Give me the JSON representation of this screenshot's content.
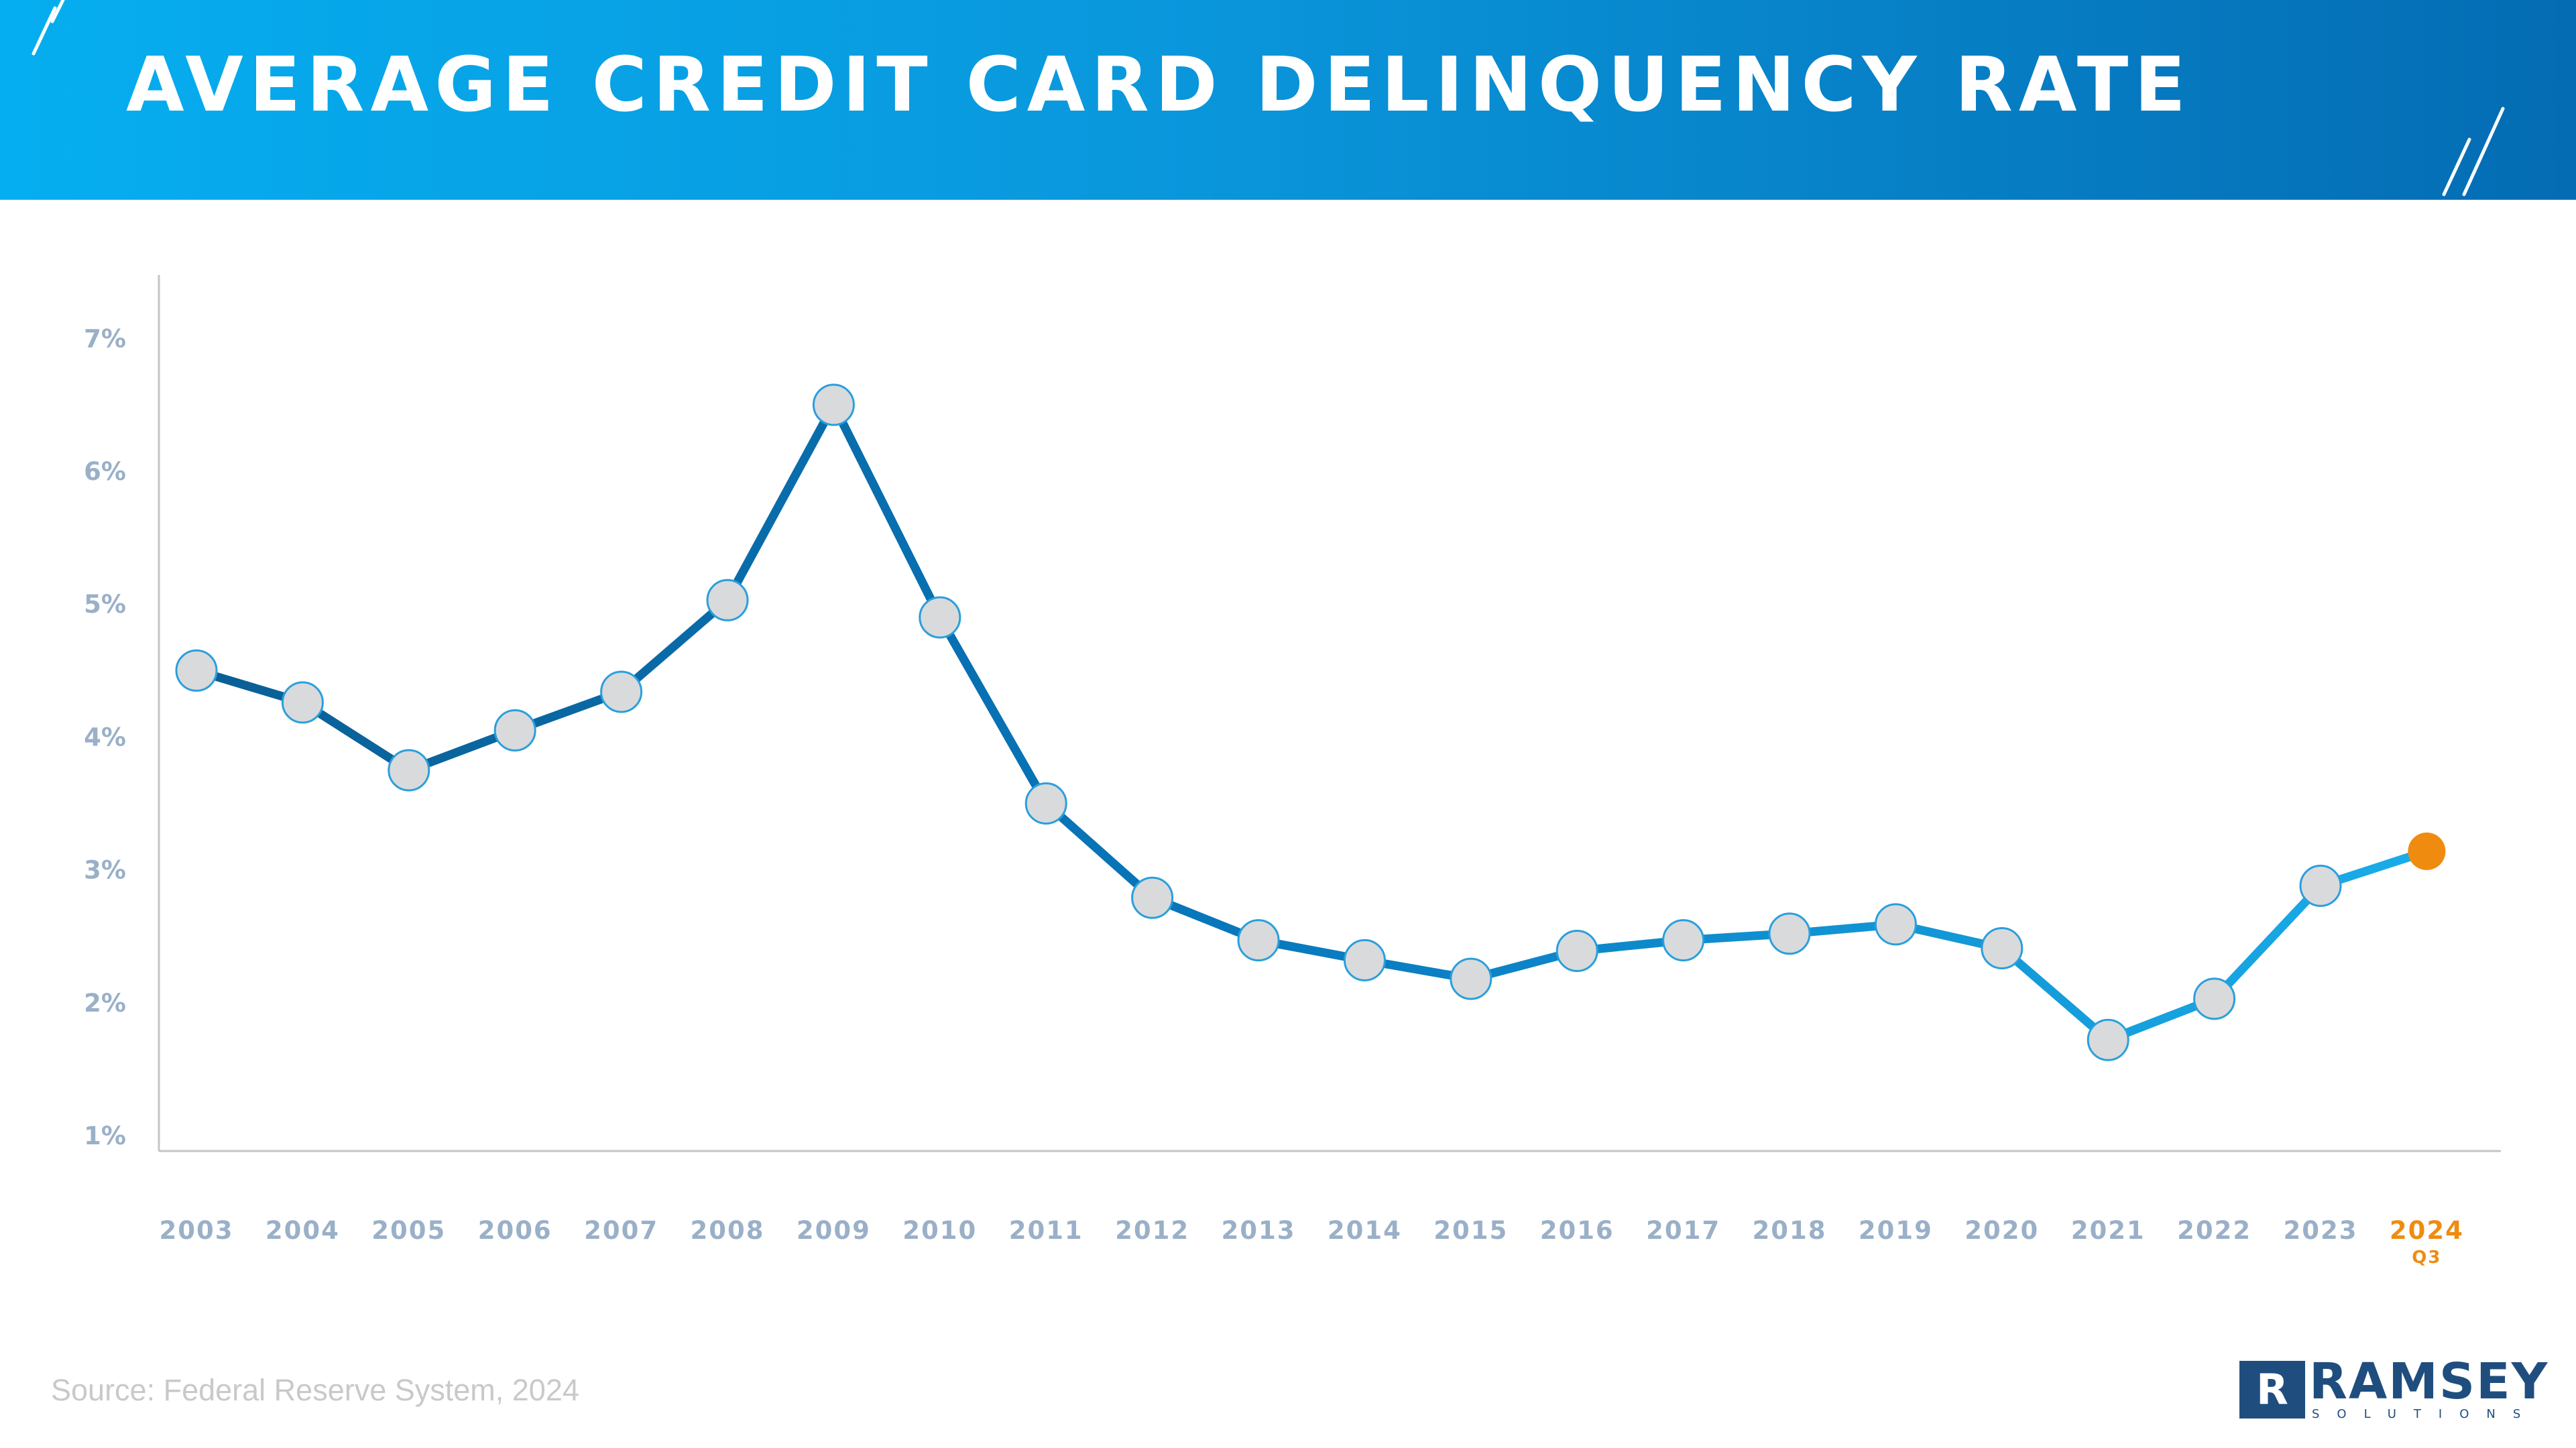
{
  "header": {
    "title": "AVERAGE CREDIT CARD DELINQUENCY RATE"
  },
  "chart_data": {
    "type": "line",
    "title": "AVERAGE CREDIT CARD DELINQUENCY RATE",
    "xlabel": "",
    "ylabel": "",
    "ylim": [
      1,
      7.6
    ],
    "y_ticks": [
      "7%",
      "6%",
      "5%",
      "4%",
      "3%",
      "2%",
      "1%"
    ],
    "y_tick_values": [
      7,
      6,
      5,
      4,
      3,
      2,
      1
    ],
    "categories": [
      "2003",
      "2004",
      "2005",
      "2006",
      "2007",
      "2008",
      "2009",
      "2010",
      "2011",
      "2012",
      "2013",
      "2014",
      "2015",
      "2016",
      "2017",
      "2018",
      "2019",
      "2020",
      "2021",
      "2022",
      "2023",
      "2024"
    ],
    "category_sublabels": {
      "2024": "Q3"
    },
    "series": [
      {
        "values": [
          4.5,
          4.26,
          3.75,
          4.05,
          4.34,
          5.03,
          6.5,
          4.9,
          3.5,
          2.79,
          2.47,
          2.32,
          2.18,
          2.39,
          2.47,
          2.52,
          2.59,
          2.41,
          1.72,
          2.03,
          2.88,
          3.14
        ]
      }
    ],
    "highlight_point": {
      "category": "2024",
      "color": "#ef8c0f"
    },
    "line_gradient": [
      "#0a5f95",
      "#0876bb",
      "#1aaeea"
    ],
    "marker_fill": "#d9dadc",
    "axis_color": "#c4c4c4",
    "grid": false,
    "legend": "none"
  },
  "footer": {
    "source": "Source: Federal Reserve System, 2024",
    "logo_word": "RAMSEY",
    "logo_sub": "SOLUTIONS",
    "logo_mark": "R"
  }
}
